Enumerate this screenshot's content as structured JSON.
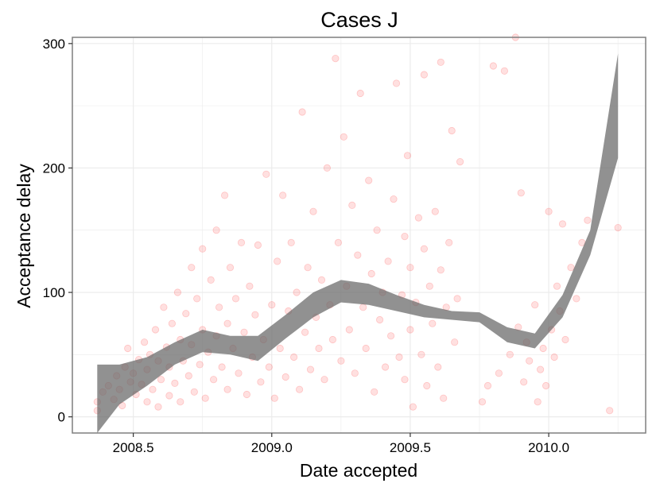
{
  "chart_data": {
    "type": "scatter",
    "title": "Cases J",
    "xlabel": "Date accepted",
    "ylabel": "Acceptance delay",
    "xlim": [
      2008.28,
      2010.35
    ],
    "ylim": [
      -13,
      305
    ],
    "x_ticks": [
      2008.5,
      2009.0,
      2009.5,
      2010.0
    ],
    "x_tick_labels": [
      "2008.5",
      "2009.0",
      "2009.5",
      "2010.0"
    ],
    "y_ticks": [
      0,
      100,
      200,
      300
    ],
    "y_tick_labels": [
      "0",
      "100",
      "200",
      "300"
    ],
    "grid": true,
    "legend": "none",
    "colors": {
      "points": "#ff0000",
      "band": "#666666",
      "panel_border": "#7f7f7f",
      "grid": "#ebebeb"
    },
    "points_opacity": 0.12,
    "points": [
      [
        2008.37,
        5
      ],
      [
        2008.37,
        12
      ],
      [
        2008.39,
        20
      ],
      [
        2008.41,
        25
      ],
      [
        2008.43,
        14
      ],
      [
        2008.44,
        33
      ],
      [
        2008.45,
        22
      ],
      [
        2008.46,
        9
      ],
      [
        2008.47,
        40
      ],
      [
        2008.48,
        55
      ],
      [
        2008.49,
        28
      ],
      [
        2008.5,
        35
      ],
      [
        2008.51,
        18
      ],
      [
        2008.52,
        46
      ],
      [
        2008.53,
        26
      ],
      [
        2008.54,
        60
      ],
      [
        2008.55,
        12
      ],
      [
        2008.55,
        38
      ],
      [
        2008.56,
        50
      ],
      [
        2008.57,
        22
      ],
      [
        2008.58,
        70
      ],
      [
        2008.59,
        8
      ],
      [
        2008.59,
        45
      ],
      [
        2008.6,
        30
      ],
      [
        2008.61,
        88
      ],
      [
        2008.62,
        56
      ],
      [
        2008.63,
        17
      ],
      [
        2008.63,
        40
      ],
      [
        2008.64,
        75
      ],
      [
        2008.65,
        27
      ],
      [
        2008.66,
        100
      ],
      [
        2008.67,
        62
      ],
      [
        2008.67,
        12
      ],
      [
        2008.68,
        45
      ],
      [
        2008.69,
        83
      ],
      [
        2008.7,
        33
      ],
      [
        2008.71,
        120
      ],
      [
        2008.71,
        58
      ],
      [
        2008.72,
        20
      ],
      [
        2008.73,
        95
      ],
      [
        2008.74,
        42
      ],
      [
        2008.75,
        70
      ],
      [
        2008.75,
        135
      ],
      [
        2008.76,
        15
      ],
      [
        2008.77,
        52
      ],
      [
        2008.78,
        110
      ],
      [
        2008.79,
        30
      ],
      [
        2008.8,
        65
      ],
      [
        2008.8,
        150
      ],
      [
        2008.81,
        88
      ],
      [
        2008.82,
        40
      ],
      [
        2008.83,
        178
      ],
      [
        2008.84,
        22
      ],
      [
        2008.84,
        75
      ],
      [
        2008.85,
        120
      ],
      [
        2008.86,
        55
      ],
      [
        2008.87,
        95
      ],
      [
        2008.88,
        35
      ],
      [
        2008.89,
        140
      ],
      [
        2008.9,
        68
      ],
      [
        2008.91,
        18
      ],
      [
        2008.92,
        105
      ],
      [
        2008.93,
        48
      ],
      [
        2008.94,
        82
      ],
      [
        2008.95,
        138
      ],
      [
        2008.96,
        28
      ],
      [
        2008.97,
        62
      ],
      [
        2008.98,
        195
      ],
      [
        2008.99,
        40
      ],
      [
        2009.0,
        90
      ],
      [
        2009.01,
        15
      ],
      [
        2009.02,
        125
      ],
      [
        2009.03,
        55
      ],
      [
        2009.04,
        178
      ],
      [
        2009.05,
        32
      ],
      [
        2009.06,
        85
      ],
      [
        2009.07,
        140
      ],
      [
        2009.08,
        48
      ],
      [
        2009.09,
        100
      ],
      [
        2009.1,
        22
      ],
      [
        2009.11,
        245
      ],
      [
        2009.12,
        68
      ],
      [
        2009.13,
        120
      ],
      [
        2009.14,
        38
      ],
      [
        2009.15,
        165
      ],
      [
        2009.16,
        80
      ],
      [
        2009.17,
        55
      ],
      [
        2009.18,
        110
      ],
      [
        2009.19,
        30
      ],
      [
        2009.2,
        200
      ],
      [
        2009.21,
        90
      ],
      [
        2009.22,
        62
      ],
      [
        2009.23,
        288
      ],
      [
        2009.24,
        140
      ],
      [
        2009.25,
        45
      ],
      [
        2009.26,
        225
      ],
      [
        2009.27,
        105
      ],
      [
        2009.28,
        70
      ],
      [
        2009.29,
        170
      ],
      [
        2009.3,
        35
      ],
      [
        2009.31,
        130
      ],
      [
        2009.32,
        260
      ],
      [
        2009.33,
        88
      ],
      [
        2009.34,
        55
      ],
      [
        2009.35,
        190
      ],
      [
        2009.36,
        115
      ],
      [
        2009.37,
        20
      ],
      [
        2009.38,
        150
      ],
      [
        2009.39,
        78
      ],
      [
        2009.4,
        100
      ],
      [
        2009.41,
        40
      ],
      [
        2009.42,
        125
      ],
      [
        2009.43,
        65
      ],
      [
        2009.44,
        175
      ],
      [
        2009.45,
        268
      ],
      [
        2009.46,
        48
      ],
      [
        2009.47,
        98
      ],
      [
        2009.48,
        30
      ],
      [
        2009.48,
        145
      ],
      [
        2009.49,
        210
      ],
      [
        2009.5,
        70
      ],
      [
        2009.5,
        120
      ],
      [
        2009.51,
        8
      ],
      [
        2009.52,
        92
      ],
      [
        2009.53,
        160
      ],
      [
        2009.54,
        50
      ],
      [
        2009.55,
        275
      ],
      [
        2009.55,
        135
      ],
      [
        2009.56,
        25
      ],
      [
        2009.57,
        105
      ],
      [
        2009.58,
        75
      ],
      [
        2009.59,
        165
      ],
      [
        2009.6,
        40
      ],
      [
        2009.61,
        285
      ],
      [
        2009.61,
        118
      ],
      [
        2009.62,
        15
      ],
      [
        2009.63,
        88
      ],
      [
        2009.64,
        140
      ],
      [
        2009.65,
        230
      ],
      [
        2009.66,
        60
      ],
      [
        2009.67,
        95
      ],
      [
        2009.68,
        205
      ],
      [
        2009.76,
        12
      ],
      [
        2009.78,
        25
      ],
      [
        2009.8,
        282
      ],
      [
        2009.82,
        35
      ],
      [
        2009.84,
        278
      ],
      [
        2009.86,
        50
      ],
      [
        2009.88,
        305
      ],
      [
        2009.89,
        72
      ],
      [
        2009.9,
        180
      ],
      [
        2009.91,
        28
      ],
      [
        2009.92,
        60
      ],
      [
        2009.93,
        45
      ],
      [
        2009.95,
        90
      ],
      [
        2009.96,
        12
      ],
      [
        2009.97,
        38
      ],
      [
        2009.98,
        55
      ],
      [
        2009.99,
        25
      ],
      [
        2010.0,
        165
      ],
      [
        2010.01,
        70
      ],
      [
        2010.02,
        48
      ],
      [
        2010.03,
        105
      ],
      [
        2010.04,
        85
      ],
      [
        2010.05,
        155
      ],
      [
        2010.06,
        62
      ],
      [
        2010.08,
        120
      ],
      [
        2010.1,
        95
      ],
      [
        2010.12,
        140
      ],
      [
        2010.14,
        158
      ],
      [
        2010.22,
        5
      ],
      [
        2010.25,
        152
      ]
    ],
    "band": {
      "x": [
        2008.37,
        2008.45,
        2008.55,
        2008.65,
        2008.75,
        2008.85,
        2008.95,
        2009.05,
        2009.15,
        2009.25,
        2009.35,
        2009.45,
        2009.55,
        2009.65,
        2009.75,
        2009.85,
        2009.95,
        2010.05,
        2010.15,
        2010.25
      ],
      "upper": [
        42,
        42,
        48,
        60,
        70,
        65,
        65,
        82,
        100,
        110,
        107,
        98,
        90,
        85,
        84,
        72,
        67,
        98,
        150,
        292
      ],
      "lower": [
        -20,
        10,
        25,
        42,
        52,
        50,
        45,
        63,
        80,
        92,
        90,
        85,
        80,
        78,
        76,
        60,
        55,
        80,
        130,
        208
      ]
    }
  }
}
